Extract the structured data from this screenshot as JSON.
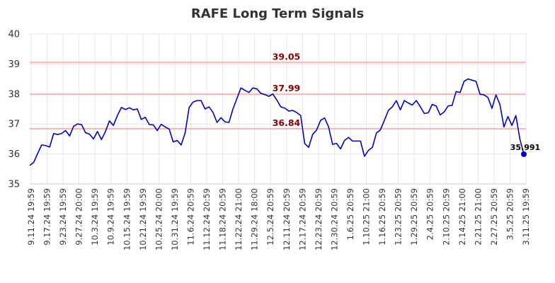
{
  "chart_data": {
    "type": "line",
    "title": "RAFE Long Term Signals",
    "xlabel": "",
    "ylabel": "",
    "ylim": [
      35,
      40
    ],
    "yticks": [
      "35",
      "36",
      "37",
      "38",
      "39",
      "40"
    ],
    "xtick_labels": [
      "9.11.24 19:59",
      "9.17.24 19:59",
      "9.23.24 19:59",
      "9.27.24 20:00",
      "10.3.24 19:59",
      "10.9.24 19:59",
      "10.15.24 19:59",
      "10.21.24 19:59",
      "10.25.24 20:00",
      "10.31.24 19:59",
      "11.6.24 20:59",
      "11.12.24 20:59",
      "11.18.24 20:59",
      "11.22.24 21:00",
      "11.29.24 18:00",
      "12.5.24 20:59",
      "12.11.24 20:59",
      "12.17.24 20:59",
      "12.23.24 20:59",
      "12.30.24 20:59",
      "1.6.25 20:59",
      "1.10.25 21:00",
      "1.16.25 20:59",
      "1.23.25 20:59",
      "1.29.25 20:59",
      "2.4.25 20:59",
      "2.10.25 20:59",
      "2.14.25 21:00",
      "2.21.25 21:00",
      "2.27.25 20:59",
      "3.5.25 20:59",
      "3.11.25 19:59"
    ],
    "grid": true,
    "reference_lines": [
      {
        "value": 39.05,
        "label": "39.05",
        "color": "#ffb3b3",
        "label_color": "#8b0000"
      },
      {
        "value": 37.99,
        "label": "37.99",
        "color": "#ffb3b3",
        "label_color": "#8b0000"
      },
      {
        "value": 36.84,
        "label": "36.84",
        "color": "#ffb3b3",
        "label_color": "#8b0000"
      }
    ],
    "series": [
      {
        "color": "#0000cc",
        "values": [
          35.62,
          35.72,
          36.02,
          36.3,
          36.28,
          36.23,
          36.68,
          36.65,
          36.68,
          36.78,
          36.6,
          36.92,
          37.0,
          36.98,
          36.71,
          36.66,
          36.5,
          36.75,
          36.48,
          36.75,
          37.1,
          36.95,
          37.28,
          37.55,
          37.48,
          37.54,
          37.47,
          37.5,
          37.15,
          37.22,
          36.98,
          36.97,
          36.78,
          36.99,
          36.9,
          36.83,
          36.4,
          36.45,
          36.3,
          36.7,
          37.55,
          37.73,
          37.78,
          37.78,
          37.5,
          37.57,
          37.38,
          37.05,
          37.21,
          37.07,
          37.05,
          37.5,
          37.85,
          38.2,
          38.12,
          38.05,
          38.2,
          38.17,
          38.02,
          37.98,
          37.92,
          38.0,
          37.8,
          37.57,
          37.53,
          37.43,
          37.45,
          37.38,
          37.28,
          36.35,
          36.22,
          36.65,
          36.8,
          37.12,
          37.2,
          36.9,
          36.32,
          36.35,
          36.17,
          36.45,
          36.55,
          36.43,
          36.43,
          36.43,
          35.92,
          36.12,
          36.22,
          36.7,
          36.8,
          37.12,
          37.45,
          37.57,
          37.78,
          37.47,
          37.78,
          37.7,
          37.63,
          37.78,
          37.58,
          37.35,
          37.37,
          37.65,
          37.6,
          37.3,
          37.4,
          37.6,
          37.62,
          38.08,
          38.05,
          38.42,
          38.5,
          38.46,
          38.42,
          37.99,
          37.97,
          37.88,
          37.52,
          37.97,
          37.65,
          36.9,
          37.25,
          36.95,
          37.28,
          36.5,
          35.991
        ],
        "last_label": "35.991"
      }
    ]
  }
}
